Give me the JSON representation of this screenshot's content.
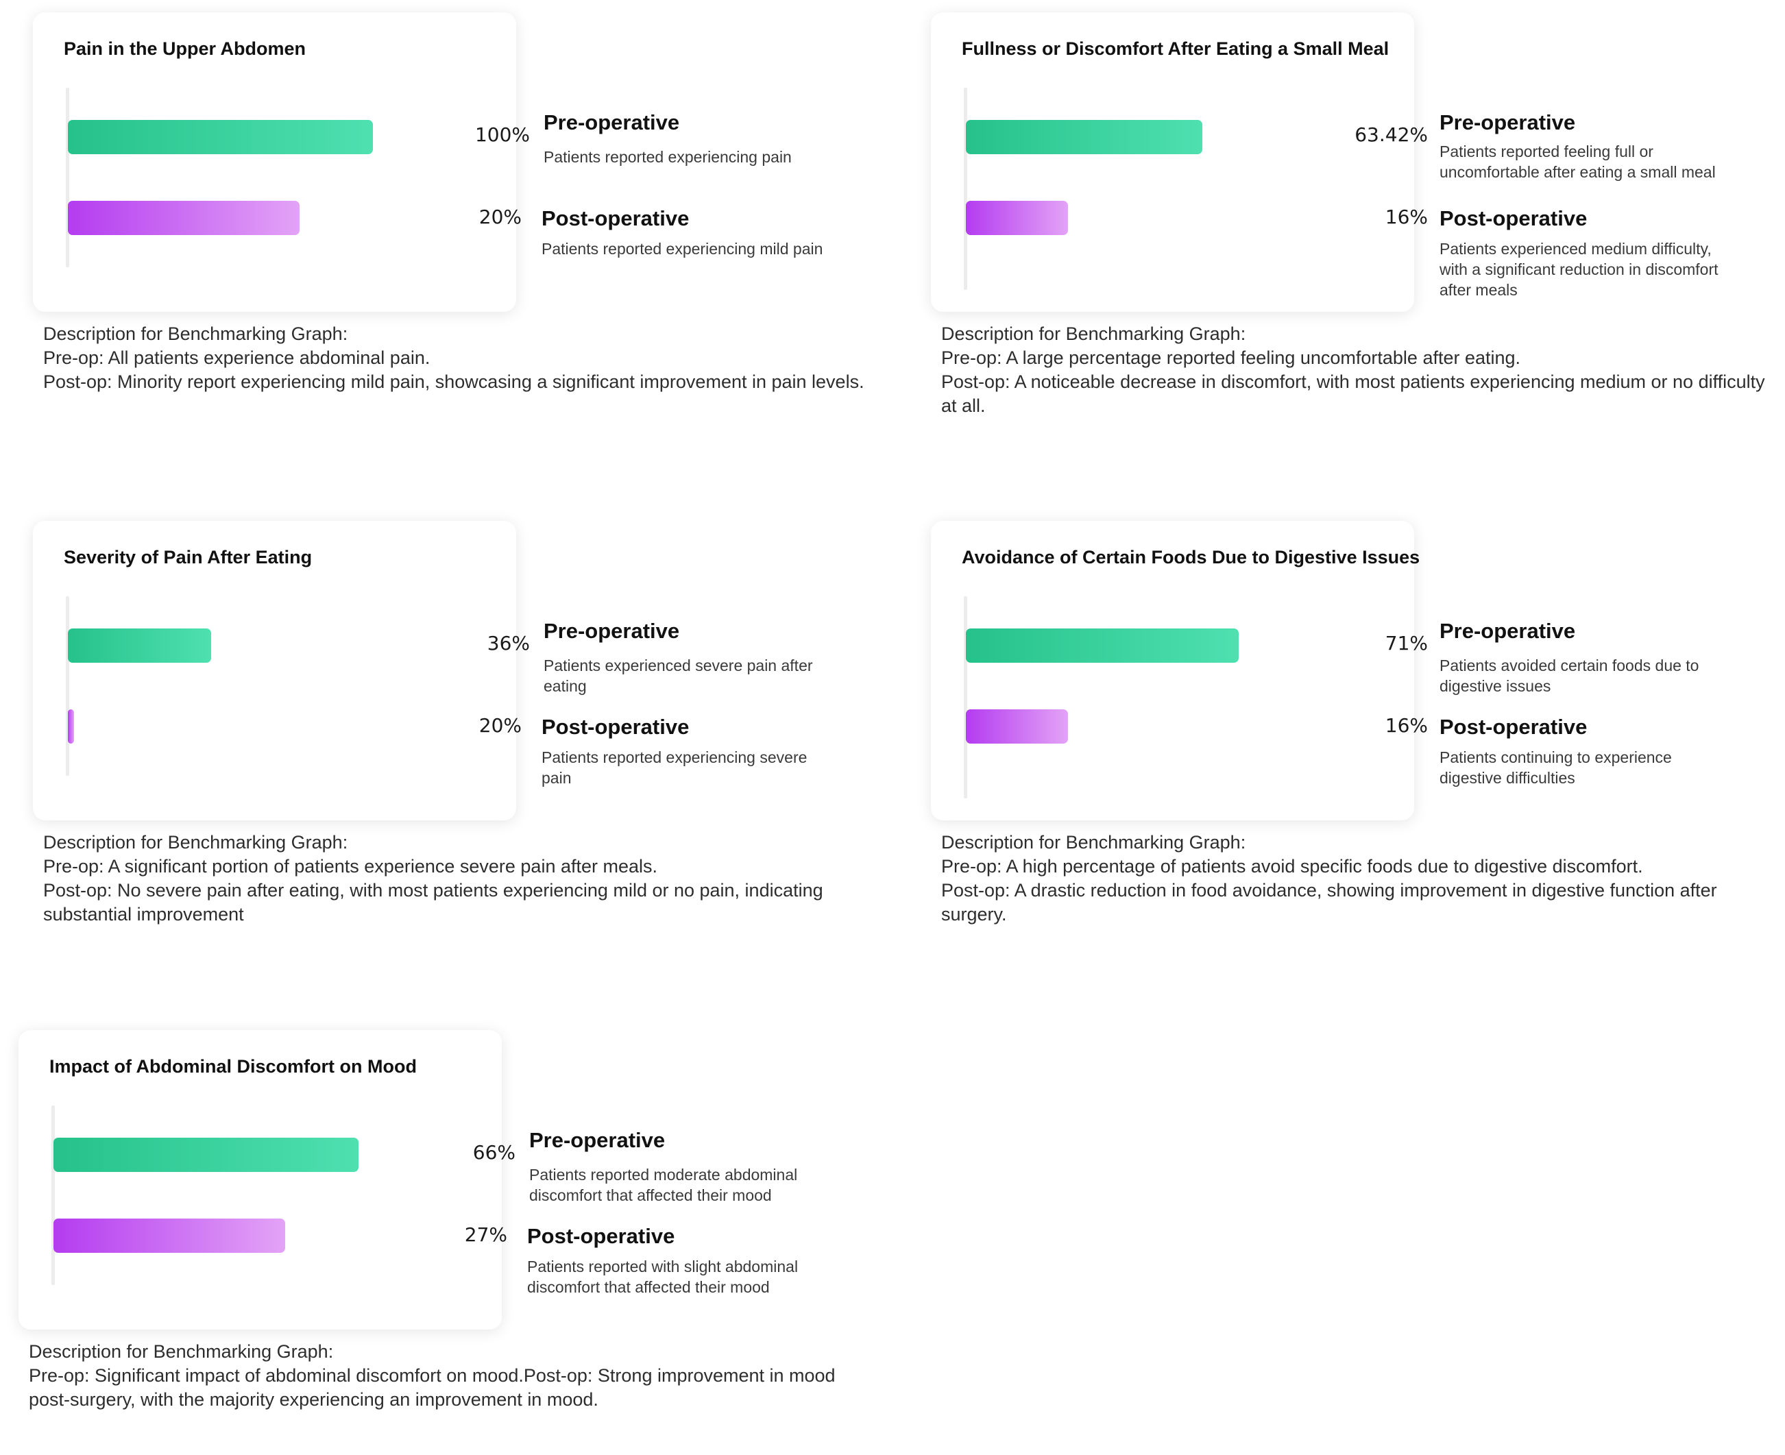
{
  "chart_data": [
    {
      "type": "bar",
      "title": "Pain in the Upper Abdomen",
      "categories": [
        "Pre-operative",
        "Post-operative"
      ],
      "values": [
        100,
        20
      ],
      "value_labels": [
        "100%",
        "20%"
      ],
      "bar_fraction": [
        1.0,
        0.76
      ],
      "legend": [
        {
          "name": "Pre-operative",
          "text": "Patients reported experiencing pain",
          "color": "#3ad6a0"
        },
        {
          "name": "Post-operative",
          "text": "Patients reported experiencing mild pain",
          "color": "#c66ff2"
        }
      ],
      "description": {
        "heading": "Description for Benchmarking Graph:",
        "pre": "Pre-op: All patients experience abdominal pain.",
        "post": "Post-op: Minority report experiencing mild pain, showcasing a significant improvement in pain levels."
      }
    },
    {
      "type": "bar",
      "title": "Fullness or Discomfort After Eating a Small Meal",
      "categories": [
        "Pre-operative",
        "Post-operative"
      ],
      "values": [
        63.42,
        16
      ],
      "value_labels": [
        "63.42%",
        "16%"
      ],
      "bar_fraction": [
        0.775,
        0.335
      ],
      "legend": [
        {
          "name": "Pre-operative",
          "text": "Patients reported feeling full or uncomfortable after eating a small meal",
          "color": "#3ad6a0"
        },
        {
          "name": "Post-operative",
          "text": "Patients experienced medium difficulty, with a significant reduction in discomfort after meals",
          "color": "#c66ff2"
        }
      ],
      "description": {
        "heading": "Description for Benchmarking Graph:",
        "pre": "Pre-op: A large percentage reported feeling uncomfortable after eating.",
        "post": "Post-op: A noticeable decrease in discomfort, with most patients experiencing medium or no difficulty at all."
      }
    },
    {
      "type": "bar",
      "title": "Severity of Pain After Eating",
      "categories": [
        "Pre-operative",
        "Post-operative"
      ],
      "values": [
        36,
        20
      ],
      "value_labels": [
        "36%",
        "20%"
      ],
      "bar_fraction": [
        0.47,
        0.02
      ],
      "legend": [
        {
          "name": "Pre-operative",
          "text": "Patients experienced severe pain after eating",
          "color": "#3ad6a0"
        },
        {
          "name": "Post-operative",
          "text": "Patients reported experiencing severe pain",
          "color": "#c66ff2"
        }
      ],
      "description": {
        "heading": "Description for Benchmarking Graph:",
        "pre": "Pre-op: A significant portion of patients experience severe pain after meals.",
        "post": "Post-op: No severe pain after eating, with most patients experiencing mild or no pain, indicating substantial improvement"
      }
    },
    {
      "type": "bar",
      "title": "Avoidance of Certain Foods Due to Digestive Issues",
      "categories": [
        "Pre-operative",
        "Post-operative"
      ],
      "values": [
        71,
        16
      ],
      "value_labels": [
        "71%",
        "16%"
      ],
      "bar_fraction": [
        0.895,
        0.335
      ],
      "legend": [
        {
          "name": "Pre-operative",
          "text": "Patients avoided certain foods due to digestive issues",
          "color": "#3ad6a0"
        },
        {
          "name": "Post-operative",
          "text": "Patients continuing to experience digestive difficulties",
          "color": "#c66ff2"
        }
      ],
      "description": {
        "heading": "Description for Benchmarking Graph:",
        "pre": "Pre-op: A high percentage of patients avoid specific foods due to digestive discomfort.",
        "post": "Post-op: A drastic reduction in food avoidance, showing improvement in digestive function after surgery."
      }
    },
    {
      "type": "bar",
      "title": "Impact of Abdominal Discomfort on Mood",
      "categories": [
        "Pre-operative",
        "Post-operative"
      ],
      "values": [
        66,
        27
      ],
      "value_labels": [
        "66%",
        "27%"
      ],
      "bar_fraction": [
        1.0,
        0.76
      ],
      "legend": [
        {
          "name": "Pre-operative",
          "text": "Patients reported moderate abdominal discomfort that affected their mood",
          "color": "#3ad6a0"
        },
        {
          "name": "Post-operative",
          "text": "Patients reported with slight abdominal discomfort that affected their mood",
          "color": "#c66ff2"
        }
      ],
      "description": {
        "heading": "Description for Benchmarking Graph:",
        "pre": "Pre-op: Significant impact of abdominal discomfort on mood.",
        "post": "Post-op: Strong improvement in mood post-surgery, with the majority experiencing an improvement in mood."
      }
    }
  ]
}
